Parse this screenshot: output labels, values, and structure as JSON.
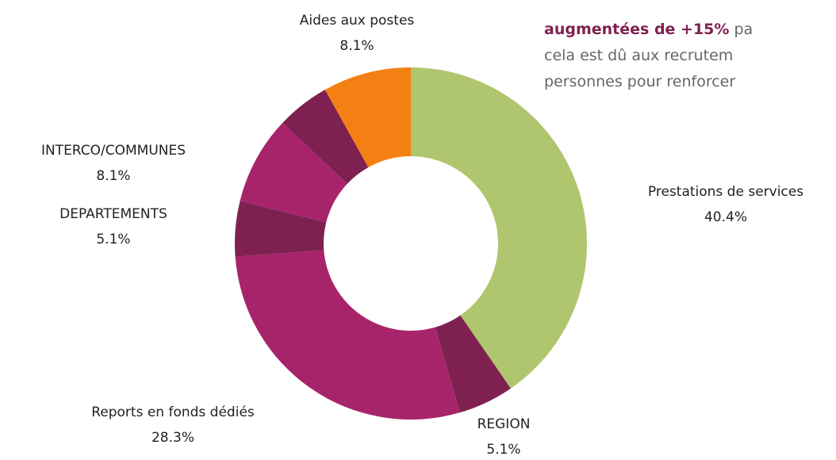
{
  "chart_data": {
    "type": "donut",
    "categories": [
      "Prestations de services",
      "REGION",
      "Reports en fonds dédiés",
      "DEPARTEMENTS",
      "INTERCO/COMMUNES",
      null,
      "Aides aux postes"
    ],
    "values": [
      40.4,
      5.1,
      28.3,
      5.1,
      8.1,
      4.9,
      8.1
    ],
    "value_labels": [
      "40.4%",
      "5.1%",
      "28.3%",
      "5.1%",
      "8.1%",
      null,
      "8.1%"
    ],
    "colors": [
      "#afc56e",
      "#7f2150",
      "#a8246a",
      "#7f2150",
      "#a8246a",
      "#7f2150",
      "#f48014"
    ]
  },
  "text_fragment": [
    {
      "highlight": "augmentées de +15%",
      "rest": " pa"
    },
    {
      "rest": "cela est dû aux recrutem"
    },
    {
      "rest": "personnes pour renforcer"
    }
  ]
}
